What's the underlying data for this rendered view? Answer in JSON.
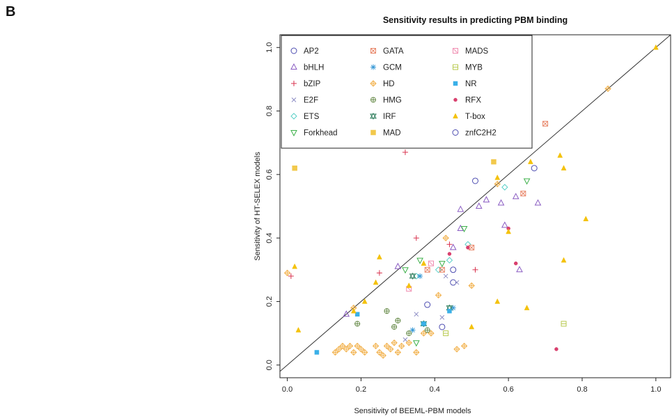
{
  "panel_label": "B",
  "chart_data": {
    "type": "scatter",
    "title": "Sensitivity results in predicting PBM binding",
    "xlabel": "Sensitivity of BEEML-PBM models",
    "ylabel": "Sensitivity of HT-SELEX models",
    "xlim": [
      -0.02,
      1.04
    ],
    "ylim": [
      -0.04,
      1.04
    ],
    "xticks": [
      "0.0",
      "0.2",
      "0.4",
      "0.6",
      "0.8",
      "1.0"
    ],
    "yticks": [
      "0.0",
      "0.2",
      "0.4",
      "0.6",
      "0.8",
      "1.0"
    ],
    "legend_position": "top-left",
    "diagonal_line": true,
    "series": [
      {
        "name": "AP2",
        "color": "#4b4bb0",
        "marker": "circle",
        "points": [
          [
            0.45,
            0.26
          ],
          [
            0.51,
            0.58
          ],
          [
            0.42,
            0.12
          ],
          [
            0.67,
            0.62
          ]
        ]
      },
      {
        "name": "bHLH",
        "color": "#8a5cc2",
        "marker": "triangle",
        "points": [
          [
            0.16,
            0.16
          ],
          [
            0.3,
            0.31
          ],
          [
            0.47,
            0.49
          ],
          [
            0.52,
            0.5
          ],
          [
            0.54,
            0.52
          ],
          [
            0.58,
            0.51
          ],
          [
            0.62,
            0.53
          ],
          [
            0.63,
            0.3
          ],
          [
            0.68,
            0.51
          ],
          [
            0.59,
            0.44
          ],
          [
            0.45,
            0.37
          ],
          [
            0.47,
            0.43
          ]
        ]
      },
      {
        "name": "bZIP",
        "color": "#d9324e",
        "marker": "plus",
        "points": [
          [
            0.01,
            0.28
          ],
          [
            0.32,
            0.67
          ],
          [
            0.35,
            0.4
          ],
          [
            0.25,
            0.29
          ],
          [
            0.44,
            0.38
          ],
          [
            0.51,
            0.3
          ]
        ]
      },
      {
        "name": "E2F",
        "color": "#8c8cc4",
        "marker": "x",
        "points": [
          [
            0.35,
            0.16
          ],
          [
            0.42,
            0.15
          ],
          [
            0.46,
            0.26
          ],
          [
            0.32,
            0.08
          ],
          [
            0.43,
            0.28
          ]
        ]
      },
      {
        "name": "ETS",
        "color": "#5ad0c8",
        "marker": "diamond",
        "points": [
          [
            0.35,
            0.28
          ],
          [
            0.41,
            0.3
          ],
          [
            0.44,
            0.33
          ],
          [
            0.49,
            0.38
          ],
          [
            0.59,
            0.56
          ],
          [
            0.37,
            0.13
          ]
        ]
      },
      {
        "name": "Forkhead",
        "color": "#3db04a",
        "marker": "triangle-down",
        "points": [
          [
            0.32,
            0.3
          ],
          [
            0.36,
            0.33
          ],
          [
            0.42,
            0.32
          ],
          [
            0.48,
            0.43
          ],
          [
            0.65,
            0.58
          ],
          [
            0.35,
            0.07
          ]
        ]
      },
      {
        "name": "GATA",
        "color": "#e8876a",
        "marker": "square-x",
        "points": [
          [
            0.7,
            0.76
          ],
          [
            0.64,
            0.54
          ],
          [
            0.5,
            0.37
          ],
          [
            0.42,
            0.3
          ],
          [
            0.38,
            0.3
          ]
        ]
      },
      {
        "name": "GCM",
        "color": "#3a9ad6",
        "marker": "asterisk",
        "points": [
          [
            0.36,
            0.28
          ],
          [
            0.45,
            0.18
          ],
          [
            0.34,
            0.11
          ]
        ]
      },
      {
        "name": "HD",
        "color": "#f2b24e",
        "marker": "diamond-plus",
        "points": [
          [
            0.13,
            0.04
          ],
          [
            0.14,
            0.05
          ],
          [
            0.15,
            0.06
          ],
          [
            0.16,
            0.05
          ],
          [
            0.17,
            0.06
          ],
          [
            0.18,
            0.04
          ],
          [
            0.19,
            0.06
          ],
          [
            0.2,
            0.05
          ],
          [
            0.21,
            0.04
          ],
          [
            0.24,
            0.06
          ],
          [
            0.25,
            0.04
          ],
          [
            0.26,
            0.03
          ],
          [
            0.27,
            0.06
          ],
          [
            0.28,
            0.05
          ],
          [
            0.29,
            0.07
          ],
          [
            0.3,
            0.04
          ],
          [
            0.31,
            0.06
          ],
          [
            0.33,
            0.07
          ],
          [
            0.35,
            0.04
          ],
          [
            0.37,
            0.1
          ],
          [
            0.39,
            0.1
          ],
          [
            0.41,
            0.22
          ],
          [
            0.43,
            0.4
          ],
          [
            0.46,
            0.05
          ],
          [
            0.48,
            0.06
          ],
          [
            0.5,
            0.25
          ],
          [
            0.57,
            0.57
          ],
          [
            0.87,
            0.87
          ],
          [
            0.18,
            0.18
          ],
          [
            0.0,
            0.29
          ]
        ]
      },
      {
        "name": "HMG",
        "color": "#6b8e4e",
        "marker": "circle-plus",
        "points": [
          [
            0.19,
            0.13
          ],
          [
            0.27,
            0.17
          ],
          [
            0.29,
            0.12
          ],
          [
            0.38,
            0.11
          ],
          [
            0.3,
            0.14
          ],
          [
            0.33,
            0.1
          ]
        ]
      },
      {
        "name": "IRF",
        "color": "#2e7d5c",
        "marker": "hourglass",
        "points": [
          [
            0.44,
            0.18
          ],
          [
            0.37,
            0.13
          ],
          [
            0.34,
            0.28
          ]
        ]
      },
      {
        "name": "MAD",
        "color": "#f2c94c",
        "marker": "square",
        "points": [
          [
            0.02,
            0.62
          ],
          [
            0.56,
            0.64
          ]
        ]
      },
      {
        "name": "MADS",
        "color": "#f08cb0",
        "marker": "square-open-x",
        "points": [
          [
            0.33,
            0.24
          ],
          [
            0.39,
            0.32
          ]
        ]
      },
      {
        "name": "MYB",
        "color": "#b8c94e",
        "marker": "square-cross",
        "points": [
          [
            0.75,
            0.13
          ],
          [
            0.43,
            0.1
          ]
        ]
      },
      {
        "name": "NR",
        "color": "#3ab0e8",
        "marker": "square-filled",
        "points": [
          [
            0.08,
            0.04
          ],
          [
            0.19,
            0.16
          ],
          [
            0.37,
            0.13
          ],
          [
            0.44,
            0.17
          ]
        ]
      },
      {
        "name": "RFX",
        "color": "#d9406e",
        "marker": "dot",
        "points": [
          [
            0.44,
            0.35
          ],
          [
            0.6,
            0.43
          ],
          [
            0.73,
            0.05
          ],
          [
            0.62,
            0.32
          ],
          [
            0.49,
            0.37
          ]
        ]
      },
      {
        "name": "T-box",
        "color": "#f4c20d",
        "marker": "triangle-filled",
        "points": [
          [
            1.0,
            1.0
          ],
          [
            0.02,
            0.31
          ],
          [
            0.03,
            0.11
          ],
          [
            0.18,
            0.17
          ],
          [
            0.21,
            0.2
          ],
          [
            0.24,
            0.26
          ],
          [
            0.25,
            0.34
          ],
          [
            0.33,
            0.25
          ],
          [
            0.37,
            0.32
          ],
          [
            0.5,
            0.12
          ],
          [
            0.57,
            0.2
          ],
          [
            0.6,
            0.42
          ],
          [
            0.66,
            0.64
          ],
          [
            0.74,
            0.66
          ],
          [
            0.75,
            0.62
          ],
          [
            0.75,
            0.33
          ],
          [
            0.81,
            0.46
          ],
          [
            0.65,
            0.18
          ],
          [
            0.57,
            0.59
          ]
        ]
      },
      {
        "name": "znfC2H2",
        "color": "#4b4bb0",
        "marker": "circle",
        "points": [
          [
            0.45,
            0.3
          ],
          [
            0.38,
            0.19
          ]
        ]
      }
    ]
  }
}
